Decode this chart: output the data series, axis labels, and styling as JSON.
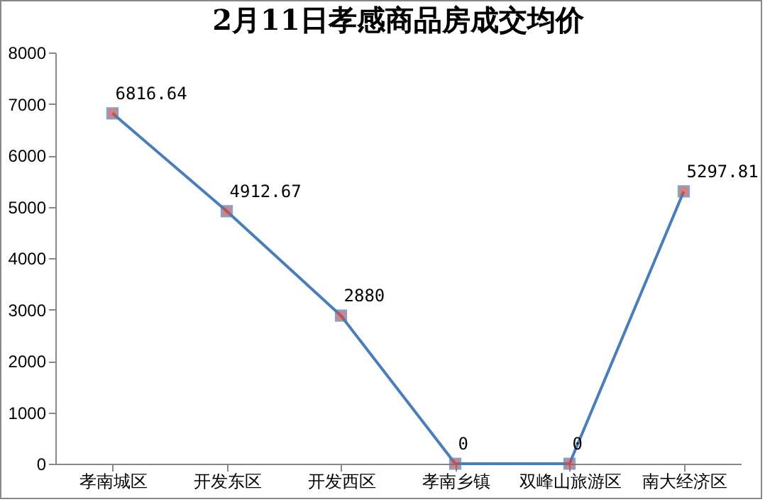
{
  "chart_data": {
    "type": "line",
    "title": "2月11日孝感商品房成交均价",
    "categories": [
      "孝南城区",
      "开发东区",
      "开发西区",
      "孝南乡镇",
      "双峰山旅游区",
      "南大经济区"
    ],
    "series": [
      {
        "color": "#4a7ebb",
        "values": [
          6816.64,
          4912.67,
          2880,
          0,
          0,
          5297.81
        ]
      }
    ],
    "ylim": [
      0,
      8000
    ],
    "yticks": [
      0,
      1000,
      2000,
      3000,
      4000,
      5000,
      6000,
      7000,
      8000
    ],
    "grid": false,
    "legend": false,
    "marker": "square",
    "line_style": "solid",
    "data_labels": true
  }
}
